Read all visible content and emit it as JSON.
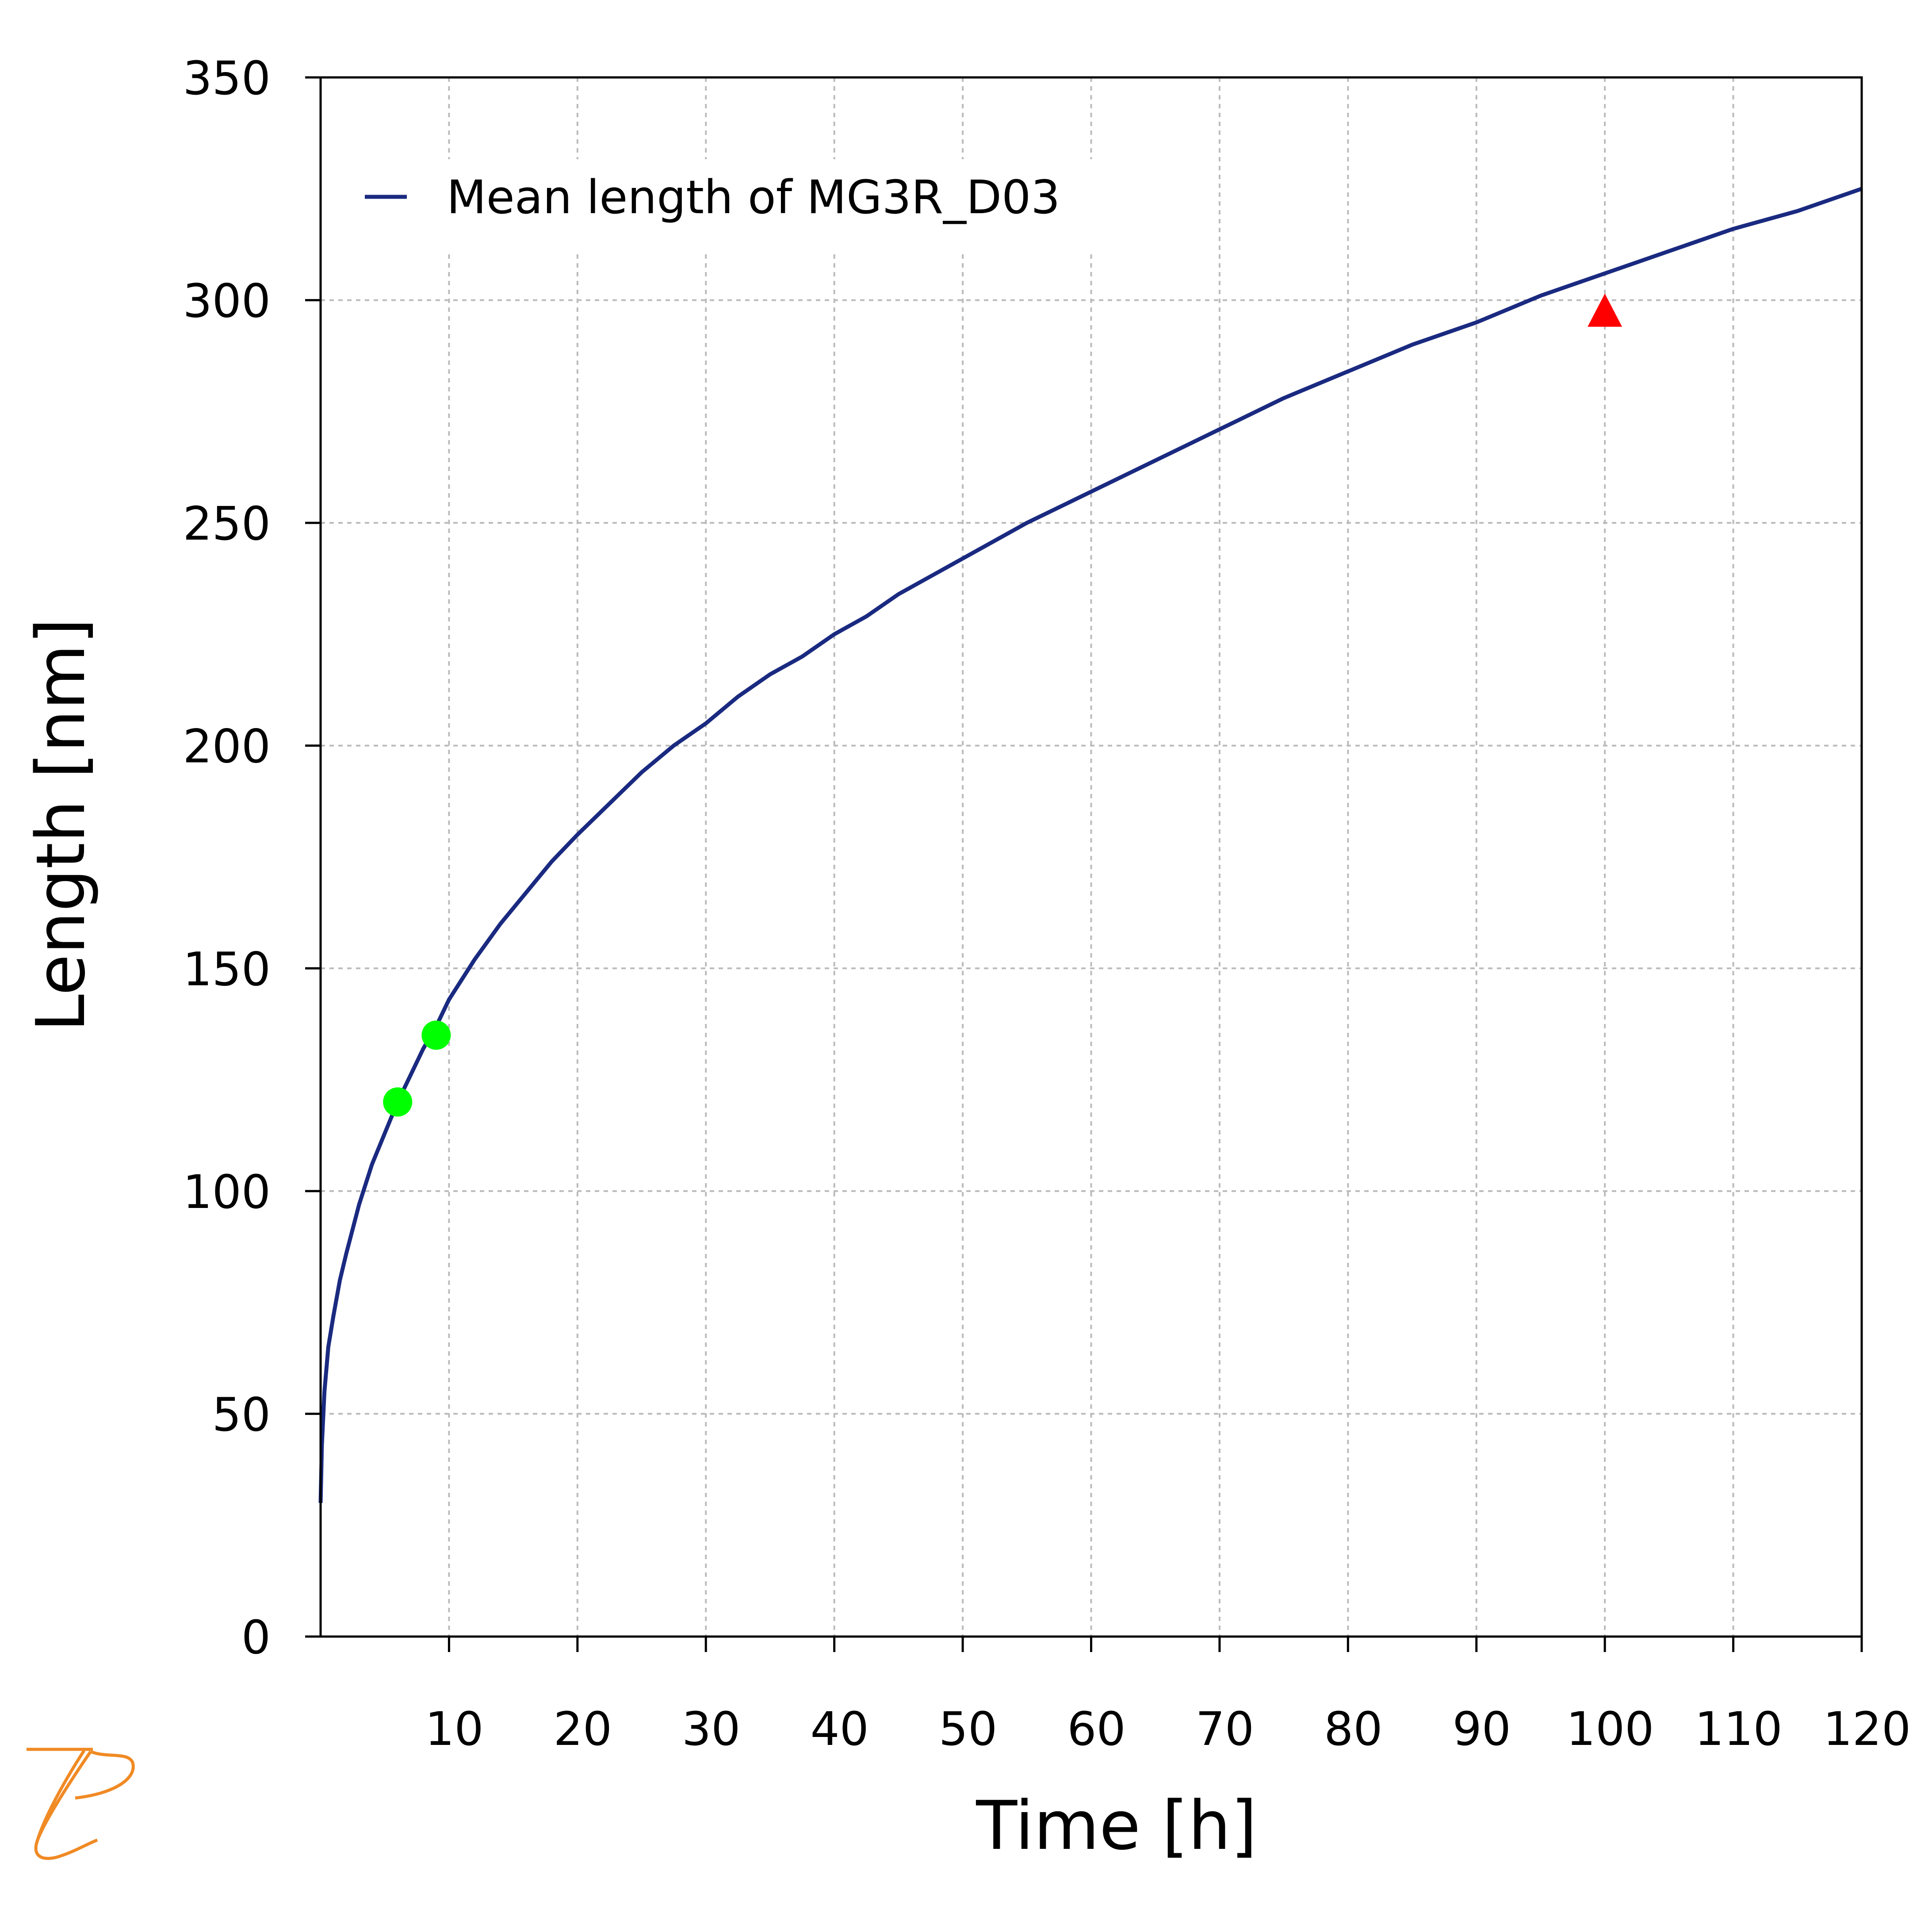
{
  "chart_data": {
    "type": "line",
    "xlabel": "Time [h]",
    "ylabel": "Length [nm]",
    "xlim": [
      0,
      120
    ],
    "ylim": [
      0,
      350
    ],
    "xticks": [
      10,
      20,
      30,
      40,
      50,
      60,
      70,
      80,
      90,
      100,
      110,
      120
    ],
    "yticks": [
      0,
      50,
      100,
      150,
      200,
      250,
      300,
      350
    ],
    "grid": true,
    "legend_position": "top-left",
    "series": [
      {
        "name": "Mean length of MG3R_D03",
        "kind": "line",
        "color": "#1a2a80",
        "x": [
          0,
          0.1,
          0.3,
          0.6,
          1,
          1.5,
          2,
          3,
          4,
          5,
          6,
          7,
          8,
          9,
          10,
          12,
          14,
          16,
          18,
          20,
          22.5,
          25,
          27.5,
          30,
          32.5,
          35,
          37.5,
          40,
          42.5,
          45,
          47.5,
          50,
          55,
          60,
          65,
          70,
          75,
          80,
          85,
          90,
          95,
          100,
          105,
          110,
          115,
          120
        ],
        "y": [
          30,
          43,
          55,
          65,
          72,
          80,
          86,
          97,
          106,
          113,
          120,
          126,
          132,
          137,
          143,
          152,
          160,
          167,
          174,
          180,
          187,
          194,
          200,
          205,
          211,
          216,
          220,
          225,
          229,
          234,
          238,
          242,
          250,
          257,
          264,
          271,
          278,
          284,
          290,
          295,
          301,
          306,
          311,
          316,
          320,
          325
        ]
      },
      {
        "name": "",
        "kind": "scatter",
        "marker": "circle",
        "color": "#00ff00",
        "x": [
          6,
          9
        ],
        "y": [
          120,
          135
        ]
      },
      {
        "name": "",
        "kind": "scatter",
        "marker": "triangle",
        "color": "#ff0000",
        "x": [
          100
        ],
        "y": [
          297
        ]
      }
    ]
  },
  "colors": {
    "axis": "#000000",
    "grid": "#bbbbbb",
    "logo": "#f08a24"
  },
  "logo_icon": "thermo-calc-logo"
}
